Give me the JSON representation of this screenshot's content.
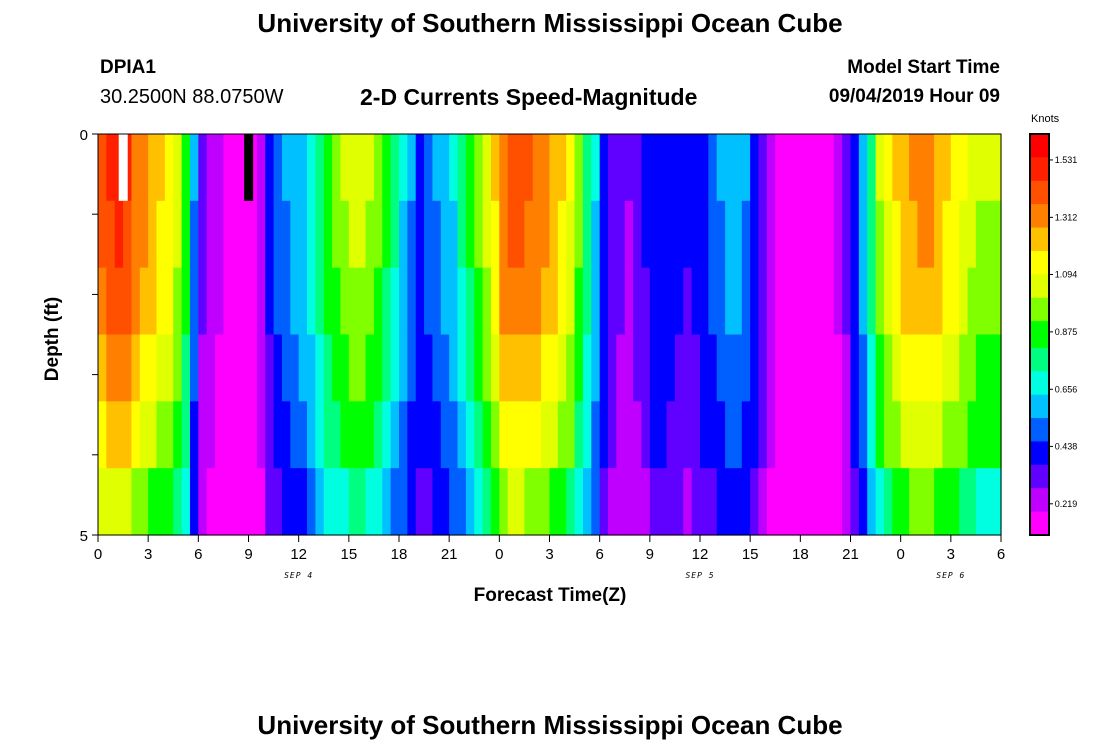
{
  "header": {
    "title": "University of Southern Mississippi Ocean Cube",
    "station": "DPIA1",
    "coords": "30.2500N 88.0750W",
    "subtitle": "2-D Currents Speed-Magnitude",
    "model_start_label": "Model Start Time",
    "model_start_value": "09/04/2019 Hour 09"
  },
  "footer": {
    "title": "University of Southern Mississippi Ocean Cube"
  },
  "chart_data": {
    "type": "heatmap",
    "title": "2-D Currents Speed-Magnitude",
    "xlabel": "Forecast Time(Z)",
    "ylabel": "Depth (ft)",
    "units": "Knots",
    "x_tick_labels": [
      "0",
      "3",
      "6",
      "9",
      "12",
      "15",
      "18",
      "21",
      "0",
      "3",
      "6",
      "9",
      "12",
      "15",
      "18",
      "21",
      "0",
      "3",
      "6"
    ],
    "y_tick_labels": [
      "0",
      "5"
    ],
    "ylim": [
      0,
      5
    ],
    "date_labels": [
      {
        "text": "SEP 4",
        "hour": 12
      },
      {
        "text": "SEP 5",
        "hour": 36
      },
      {
        "text": "SEP 6",
        "hour": 51
      }
    ],
    "colorbar_ticks": [
      "1.531",
      "1.312",
      "1.094",
      "0.875",
      "0.656",
      "0.438",
      "0.219"
    ],
    "value_range": [
      0.1,
      1.63
    ],
    "colors": [
      "#ff00ff",
      "#c000ff",
      "#6000ff",
      "#0000ff",
      "#0060ff",
      "#00c0ff",
      "#00ffe0",
      "#00ff80",
      "#00ff00",
      "#80ff00",
      "#e0ff00",
      "#ffff00",
      "#ffc000",
      "#ff8000",
      "#ff5000",
      "#ff2000",
      "#ff0000"
    ],
    "profile_hours": [
      0,
      0.5,
      1,
      1.5,
      2,
      2.5,
      3,
      3.5,
      4,
      4.5,
      5,
      5.5,
      6,
      6.5,
      7,
      7.5,
      8,
      8.5,
      9,
      9.5,
      10,
      10.5,
      11,
      11.5,
      12,
      12.5,
      13,
      13.5,
      14,
      14.5,
      15,
      15.5,
      16,
      16.5,
      17,
      17.5,
      18,
      18.5,
      19,
      19.5,
      20,
      20.5,
      21,
      21.5,
      22,
      22.5,
      23,
      23.5,
      24,
      24.5,
      25,
      25.5,
      26,
      26.5,
      27,
      27.5,
      28,
      28.5,
      29,
      29.5,
      30,
      30.5,
      31,
      31.5,
      32,
      32.5,
      33,
      33.5,
      34,
      34.5,
      35,
      35.5,
      36,
      36.5,
      37,
      37.5,
      38,
      38.5,
      39,
      39.5,
      40,
      40.5,
      41,
      41.5,
      42,
      42.5,
      43,
      43.5,
      44,
      44.5,
      45,
      45.5,
      46,
      46.5,
      47,
      47.5,
      48,
      48.5,
      49,
      49.5,
      50,
      50.5,
      51,
      51.5,
      52,
      52.5,
      53,
      53.5,
      54
    ],
    "surface_speed": [
      1.4,
      1.45,
      1.5,
      1.45,
      1.35,
      1.3,
      1.25,
      1.2,
      1.15,
      1.05,
      0.9,
      0.55,
      0.3,
      0.25,
      0.2,
      0.18,
      0.16,
      0.15,
      0.15,
      0.25,
      0.4,
      0.5,
      0.55,
      0.6,
      0.62,
      0.7,
      0.8,
      0.9,
      0.95,
      1.0,
      1.05,
      1.05,
      1.0,
      0.95,
      0.85,
      0.75,
      0.65,
      0.55,
      0.45,
      0.5,
      0.55,
      0.6,
      0.65,
      0.75,
      0.85,
      0.95,
      1.05,
      1.2,
      1.35,
      1.4,
      1.4,
      1.38,
      1.35,
      1.3,
      1.25,
      1.2,
      1.1,
      0.95,
      0.8,
      0.65,
      0.45,
      0.35,
      0.3,
      0.28,
      0.32,
      0.38,
      0.45,
      0.45,
      0.42,
      0.4,
      0.38,
      0.4,
      0.45,
      0.5,
      0.55,
      0.6,
      0.6,
      0.55,
      0.45,
      0.35,
      0.25,
      0.18,
      0.15,
      0.12,
      0.12,
      0.13,
      0.14,
      0.16,
      0.2,
      0.3,
      0.45,
      0.6,
      0.8,
      1.0,
      1.1,
      1.2,
      1.25,
      1.28,
      1.3,
      1.3,
      1.25,
      1.2,
      1.15,
      1.1,
      1.05,
      1.0,
      1.0,
      1.0,
      1.0
    ],
    "depth_factors": [
      1.0,
      0.98,
      0.95,
      0.9,
      0.83,
      0.72
    ],
    "missing_cells": [
      {
        "hour": 1,
        "row": 0,
        "value": "white"
      },
      {
        "hour": 8.5,
        "row": 0,
        "value": "black"
      }
    ]
  }
}
